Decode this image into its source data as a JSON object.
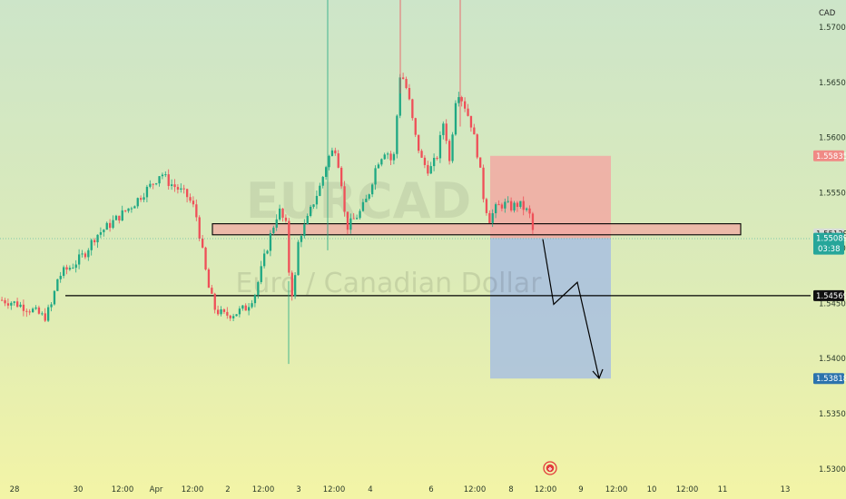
{
  "currency_label": "CAD",
  "watermark": {
    "symbol": "EURCAD",
    "name": "Euro / Canadian Dollar"
  },
  "price_tags": {
    "stop": "1.55835",
    "zone": "1.55129",
    "last": "1.55089",
    "countdown": "03:38",
    "support": "1.54569",
    "target": "1.53818"
  },
  "colors": {
    "bg_top": "#cde5c9",
    "bg_bottom": "#f2f4a8",
    "up": "#1fa883",
    "down": "#ef4f58",
    "stop_zone": "#f2a9a3",
    "target_zone": "#a8bfe0",
    "stop_tag": "#f08a85",
    "last_tag": "#26a69a",
    "target_tag": "#2c73ad",
    "zone_tag": "#d9ddd9"
  },
  "chart_data": {
    "type": "candlestick",
    "symbol": "EURCAD",
    "y_ticks": [
      "1.57000",
      "1.56500",
      "1.56000",
      "1.55500",
      "1.55000",
      "1.54500",
      "1.54000",
      "1.53500",
      "1.53000"
    ],
    "ylim": [
      1.5295,
      1.5733
    ],
    "x_ticks": [
      "28",
      "30",
      "12:00",
      "Apr",
      "12:00",
      "2",
      "12:00",
      "3",
      "12:00",
      "4",
      "6",
      "12:00",
      "8",
      "12:00",
      "9",
      "12:00",
      "10",
      "12:00",
      "11",
      "13"
    ],
    "close_path": [
      [
        0,
        1.5453
      ],
      [
        12,
        1.5451
      ],
      [
        22,
        1.5448
      ],
      [
        34,
        1.5444
      ],
      [
        48,
        1.5437
      ],
      [
        56,
        1.5449
      ],
      [
        62,
        1.5472
      ],
      [
        68,
        1.5478
      ],
      [
        80,
        1.5485
      ],
      [
        92,
        1.5495
      ],
      [
        104,
        1.5511
      ],
      [
        118,
        1.552
      ],
      [
        132,
        1.553
      ],
      [
        146,
        1.554
      ],
      [
        158,
        1.5551
      ],
      [
        170,
        1.5561
      ],
      [
        176,
        1.5569
      ],
      [
        184,
        1.556
      ],
      [
        196,
        1.5553
      ],
      [
        206,
        1.5546
      ],
      [
        214,
        1.5534
      ],
      [
        220,
        1.5506
      ],
      [
        228,
        1.5466
      ],
      [
        236,
        1.5444
      ],
      [
        246,
        1.5439
      ],
      [
        258,
        1.5441
      ],
      [
        270,
        1.5446
      ],
      [
        280,
        1.5459
      ],
      [
        290,
        1.5491
      ],
      [
        298,
        1.5515
      ],
      [
        306,
        1.5535
      ],
      [
        314,
        1.552
      ],
      [
        318,
        1.5469
      ],
      [
        322,
        1.5455
      ],
      [
        328,
        1.551
      ],
      [
        336,
        1.5522
      ],
      [
        344,
        1.5541
      ],
      [
        352,
        1.5557
      ],
      [
        360,
        1.5581
      ],
      [
        368,
        1.5591
      ],
      [
        374,
        1.5568
      ],
      [
        380,
        1.5518
      ],
      [
        388,
        1.5525
      ],
      [
        396,
        1.5533
      ],
      [
        404,
        1.5546
      ],
      [
        414,
        1.5577
      ],
      [
        424,
        1.559
      ],
      [
        432,
        1.5575
      ],
      [
        440,
        1.5661
      ],
      [
        448,
        1.5641
      ],
      [
        456,
        1.5602
      ],
      [
        464,
        1.5578
      ],
      [
        472,
        1.557
      ],
      [
        480,
        1.5582
      ],
      [
        488,
        1.5617
      ],
      [
        494,
        1.5578
      ],
      [
        502,
        1.5645
      ],
      [
        510,
        1.5631
      ],
      [
        518,
        1.5612
      ],
      [
        526,
        1.5581
      ],
      [
        532,
        1.5543
      ],
      [
        538,
        1.5526
      ],
      [
        546,
        1.5537
      ],
      [
        554,
        1.554
      ],
      [
        562,
        1.5537
      ],
      [
        570,
        1.554
      ],
      [
        576,
        1.5536
      ],
      [
        582,
        1.5531
      ],
      [
        586,
        1.5515
      ],
      [
        588,
        1.5509
      ]
    ],
    "support_level": 1.54569,
    "resistance_zone": [
      1.5512,
      1.5522
    ],
    "position": {
      "type": "short",
      "entry": 1.5509,
      "stop": 1.55835,
      "target": 1.53818
    },
    "projection": [
      [
        598,
        1.5508
      ],
      [
        610,
        1.5449
      ],
      [
        636,
        1.5469
      ],
      [
        660,
        1.5382
      ]
    ]
  }
}
